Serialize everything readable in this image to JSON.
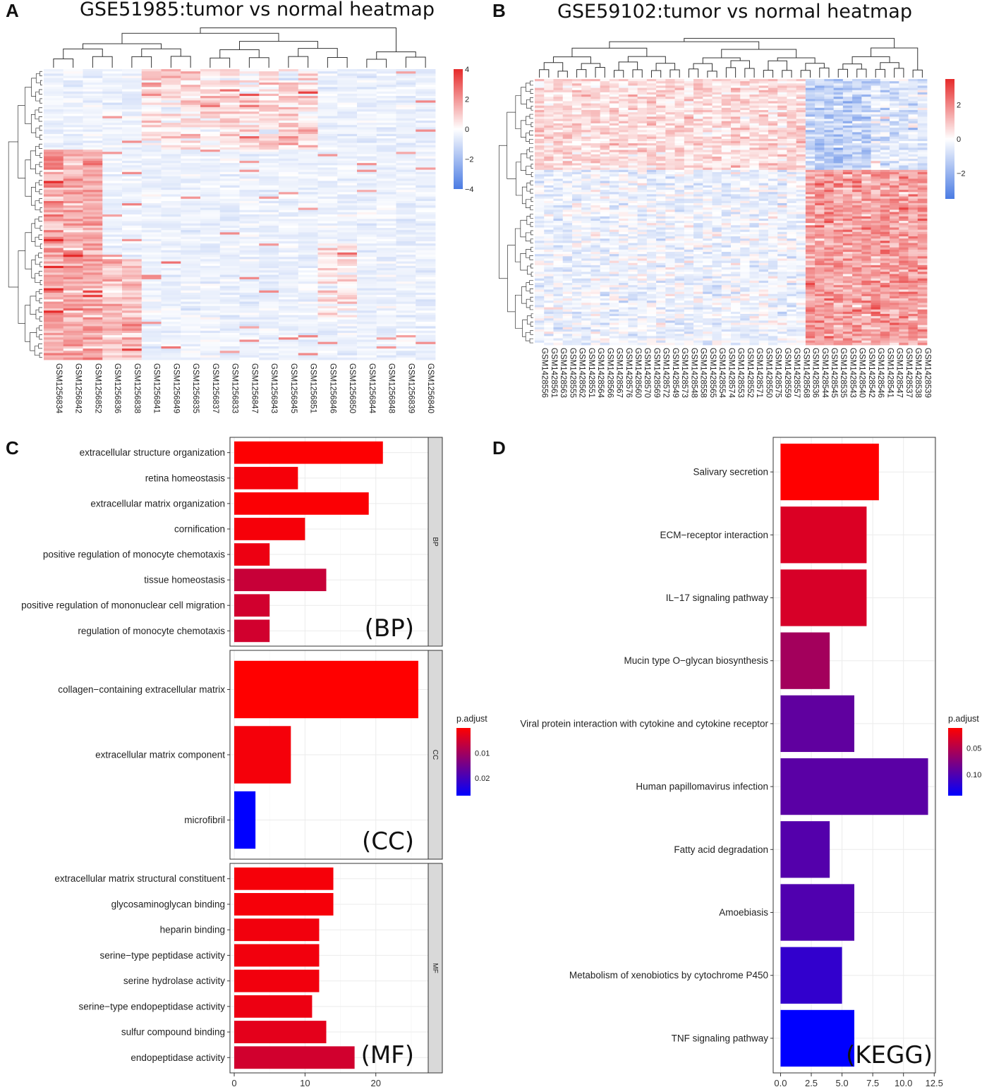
{
  "panels": {
    "a": {
      "label": "A"
    },
    "b": {
      "label": "B"
    },
    "c": {
      "label": "C"
    },
    "d": {
      "label": "D"
    }
  },
  "colors": {
    "red": "#ff0000",
    "blue": "#0000ff",
    "heat_high": "#e62a2a",
    "heat_mid": "#ffffff",
    "heat_low": "#4a7be3"
  },
  "chart_data": [
    {
      "id": "heatmap_a",
      "type": "heatmap",
      "title": "GSE51985:tumor vs normal heatmap",
      "columns": [
        "GSM1256834",
        "GSM1256842",
        "GSM1256852",
        "GSM1256836",
        "GSM1256838",
        "GSM1256841",
        "GSM1256849",
        "GSM1256835",
        "GSM1256837",
        "GSM1256833",
        "GSM1256847",
        "GSM1256843",
        "GSM1256845",
        "GSM1256851",
        "GSM1256846",
        "GSM1256850",
        "GSM1256844",
        "GSM1256848",
        "GSM1256839",
        "GSM1256840"
      ],
      "legend_ticks": [
        4,
        2,
        0,
        -2,
        -4
      ],
      "value_range": [
        -4,
        4
      ]
    },
    {
      "id": "heatmap_b",
      "type": "heatmap",
      "title": "GSE59102:tumor vs normal heatmap",
      "columns": [
        "GSM1428556",
        "GSM1428561",
        "GSM1428563",
        "GSM1428555",
        "GSM1428562",
        "GSM1428551",
        "GSM1428564",
        "GSM1428566",
        "GSM1428567",
        "GSM1428576",
        "GSM1428560",
        "GSM1428570",
        "GSM1428569",
        "GSM1428572",
        "GSM1428549",
        "GSM1428573",
        "GSM1428548",
        "GSM1428558",
        "GSM1428565",
        "GSM1428554",
        "GSM1428574",
        "GSM1428553",
        "GSM1428552",
        "GSM1428571",
        "GSM1428550",
        "GSM1428575",
        "GSM1428559",
        "GSM1428557",
        "GSM1428568",
        "GSM1428536",
        "GSM1428544",
        "GSM1428545",
        "GSM1428535",
        "GSM1428543",
        "GSM1428540",
        "GSM1428542",
        "GSM1428546",
        "GSM1428541",
        "GSM1428547",
        "GSM1428537",
        "GSM1428538",
        "GSM1428539"
      ],
      "legend_ticks": [
        2,
        0,
        -2
      ],
      "value_range": [
        -3.5,
        3.5
      ]
    },
    {
      "id": "go_bar_c",
      "type": "bar",
      "orientation": "horizontal",
      "facets": [
        {
          "name": "BP",
          "tag": "(BP)",
          "categories": [
            "extracellular structure organization",
            "retina homeostasis",
            "extracellular matrix organization",
            "cornification",
            "positive regulation of monocyte chemotaxis",
            "tissue homeostasis",
            "positive regulation of mononuclear cell migration",
            "regulation of monocyte chemotaxis"
          ],
          "values": [
            21,
            9,
            19,
            10,
            5,
            13,
            5,
            5
          ],
          "p_adjust": [
            0.0003,
            0.001,
            0.0005,
            0.001,
            0.002,
            0.006,
            0.005,
            0.005
          ]
        },
        {
          "name": "CC",
          "tag": "(CC)",
          "categories": [
            "collagen-containing extracellular matrix",
            "extracellular matrix component",
            "microfibril"
          ],
          "values": [
            26,
            8,
            3
          ],
          "p_adjust": [
            0.0001,
            0.0012,
            0.027
          ]
        },
        {
          "name": "MF",
          "tag": "(MF)",
          "categories": [
            "extracellular matrix structural constituent",
            "glycosaminoglycan binding",
            "heparin binding",
            "serine-type peptidase activity",
            "serine hydrolase activity",
            "serine-type endopeptidase activity",
            "sulfur compound binding",
            "endopeptidase activity"
          ],
          "values": [
            14,
            14,
            12,
            12,
            12,
            11,
            13,
            17
          ],
          "p_adjust": [
            0.001,
            0.001,
            0.0015,
            0.0015,
            0.0015,
            0.002,
            0.003,
            0.005
          ]
        }
      ],
      "x_ticks": [
        0,
        10,
        20
      ],
      "xlim": [
        -0.6,
        27.4
      ],
      "legend": {
        "title": "p.adjust",
        "ticks": [
          0.01,
          0.02
        ],
        "range": [
          0.0001,
          0.027
        ]
      }
    },
    {
      "id": "kegg_bar_d",
      "type": "bar",
      "orientation": "horizontal",
      "tag": "(KEGG)",
      "categories": [
        "Salivary secretion",
        "ECM-receptor interaction",
        "IL-17 signaling pathway",
        "Mucin type O-glycan biosynthesis",
        "Viral protein interaction with cytokine and cytokine receptor",
        "Human papillomavirus infection",
        "Fatty acid degradation",
        "Amoebiasis",
        "Metabolism of xenobiotics by cytochrome P450",
        "TNF signaling pathway"
      ],
      "values": [
        8,
        7,
        7,
        4,
        6,
        12,
        4,
        6,
        5,
        6
      ],
      "p_adjust": [
        0.012,
        0.03,
        0.032,
        0.058,
        0.092,
        0.095,
        0.098,
        0.1,
        0.115,
        0.14
      ],
      "x_ticks": [
        0.0,
        2.5,
        5.0,
        7.5,
        10.0,
        12.5
      ],
      "x_tick_labels": [
        "0.0",
        "2.5",
        "5.0",
        "7.5",
        "10.0",
        "12.5"
      ],
      "xlim": [
        -0.6,
        12.6
      ],
      "legend": {
        "title": "p.adjust",
        "ticks": [
          0.05,
          0.1
        ],
        "tick_labels": [
          "0.05",
          "0.10"
        ],
        "range": [
          0.012,
          0.14
        ]
      }
    }
  ]
}
